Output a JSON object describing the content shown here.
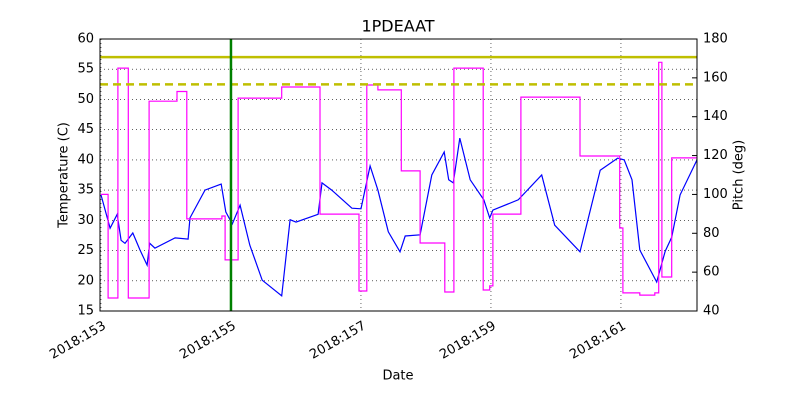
{
  "chart_data": {
    "type": "line",
    "title": "1PDEAAT",
    "xlabel": "Date",
    "ylabel": "Temperature (C)",
    "y2label": "Pitch (deg)",
    "xlim": [
      152.985,
      162.17
    ],
    "xticks": [
      {
        "value": 153,
        "label": "2018:153"
      },
      {
        "value": 155,
        "label": "2018:155"
      },
      {
        "value": 157,
        "label": "2018:157"
      },
      {
        "value": 159,
        "label": "2018:159"
      },
      {
        "value": 161,
        "label": "2018:161"
      }
    ],
    "ylim": [
      15,
      60
    ],
    "yticks": [
      15,
      20,
      25,
      30,
      35,
      40,
      45,
      50,
      55,
      60
    ],
    "y2lim": [
      40,
      180
    ],
    "y2ticks": [
      40,
      60,
      80,
      100,
      120,
      140,
      160,
      180
    ],
    "y2color": "#ff00ff",
    "grid": true,
    "hlines": [
      {
        "value": 57,
        "color": "#bfbf00",
        "dashed": false
      },
      {
        "value": 52.5,
        "color": "#bfbf00",
        "dashed": true
      }
    ],
    "vline": {
      "value": 155,
      "color": "#008000"
    },
    "series": [
      {
        "color": "#0000ff",
        "x": [
          153.0,
          153.14,
          153.25,
          153.31,
          153.37,
          153.49,
          153.6,
          153.71,
          153.75,
          153.83,
          154.14,
          154.34,
          154.37,
          154.6,
          154.85,
          154.92,
          155.02,
          155.14,
          155.29,
          155.48,
          155.78,
          155.91,
          156.0,
          156.34,
          156.4,
          156.55,
          156.86,
          157.0,
          157.14,
          157.26,
          157.42,
          157.6,
          157.68,
          157.91,
          158.09,
          158.28,
          158.35,
          158.42,
          158.52,
          158.68,
          158.89,
          158.98,
          159.03,
          159.42,
          159.78,
          159.98,
          160.37,
          160.68,
          160.95,
          161.05,
          161.17,
          161.29,
          161.55,
          161.68,
          161.78,
          161.91,
          162.17
        ],
        "values": [
          34.2,
          28.7,
          31.0,
          26.7,
          26.2,
          27.9,
          25.1,
          22.6,
          26.2,
          25.4,
          27.1,
          26.9,
          30.4,
          35.0,
          36.0,
          31.4,
          29.4,
          32.5,
          25.9,
          20.1,
          17.5,
          30.1,
          29.7,
          31.0,
          36.2,
          35.0,
          32.0,
          31.9,
          39.0,
          35.0,
          28.1,
          24.8,
          27.4,
          27.6,
          37.5,
          41.3,
          36.7,
          36.2,
          43.6,
          36.7,
          33.4,
          30.4,
          31.7,
          33.4,
          37.5,
          29.2,
          24.8,
          38.3,
          40.3,
          40.0,
          36.7,
          25.1,
          19.8,
          24.9,
          27.2,
          34.2,
          40.0
        ]
      },
      {
        "color": "#ff00ff",
        "axis": "y2",
        "x": [
          153.0,
          153.11,
          153.11,
          153.26,
          153.26,
          153.42,
          153.42,
          153.74,
          153.74,
          154.17,
          154.17,
          154.32,
          154.32,
          154.86,
          154.86,
          154.91,
          154.91,
          155.11,
          155.11,
          155.78,
          155.78,
          156.37,
          156.37,
          156.97,
          156.97,
          157.09,
          157.09,
          157.26,
          157.26,
          157.62,
          157.62,
          157.91,
          157.91,
          158.29,
          158.29,
          158.43,
          158.43,
          158.88,
          158.88,
          158.98,
          158.98,
          159.03,
          159.03,
          159.46,
          159.46,
          160.37,
          160.37,
          160.98,
          160.98,
          161.03,
          161.03,
          161.29,
          161.29,
          161.52,
          161.52,
          161.58,
          161.58,
          161.63,
          161.63,
          161.78,
          161.78,
          162.17
        ],
        "values": [
          100,
          100,
          46.7,
          46.7,
          165,
          165,
          46.7,
          46.7,
          148,
          148,
          153,
          153,
          87.4,
          87.4,
          88.9,
          88.9,
          66.3,
          66.3,
          149.6,
          149.6,
          155.3,
          155.3,
          89.9,
          89.9,
          50.3,
          50.3,
          156.3,
          156.3,
          153.8,
          153.8,
          112.1,
          112.1,
          75,
          75,
          49.8,
          49.8,
          165,
          165,
          50.8,
          50.8,
          52.9,
          52.9,
          89.9,
          89.9,
          150.1,
          150.1,
          119.8,
          119.8,
          82.7,
          82.7,
          49.3,
          49.3,
          48.2,
          48.2,
          49.3,
          49.3,
          168,
          168,
          57.5,
          57.5,
          118.8,
          118.8
        ]
      }
    ]
  }
}
